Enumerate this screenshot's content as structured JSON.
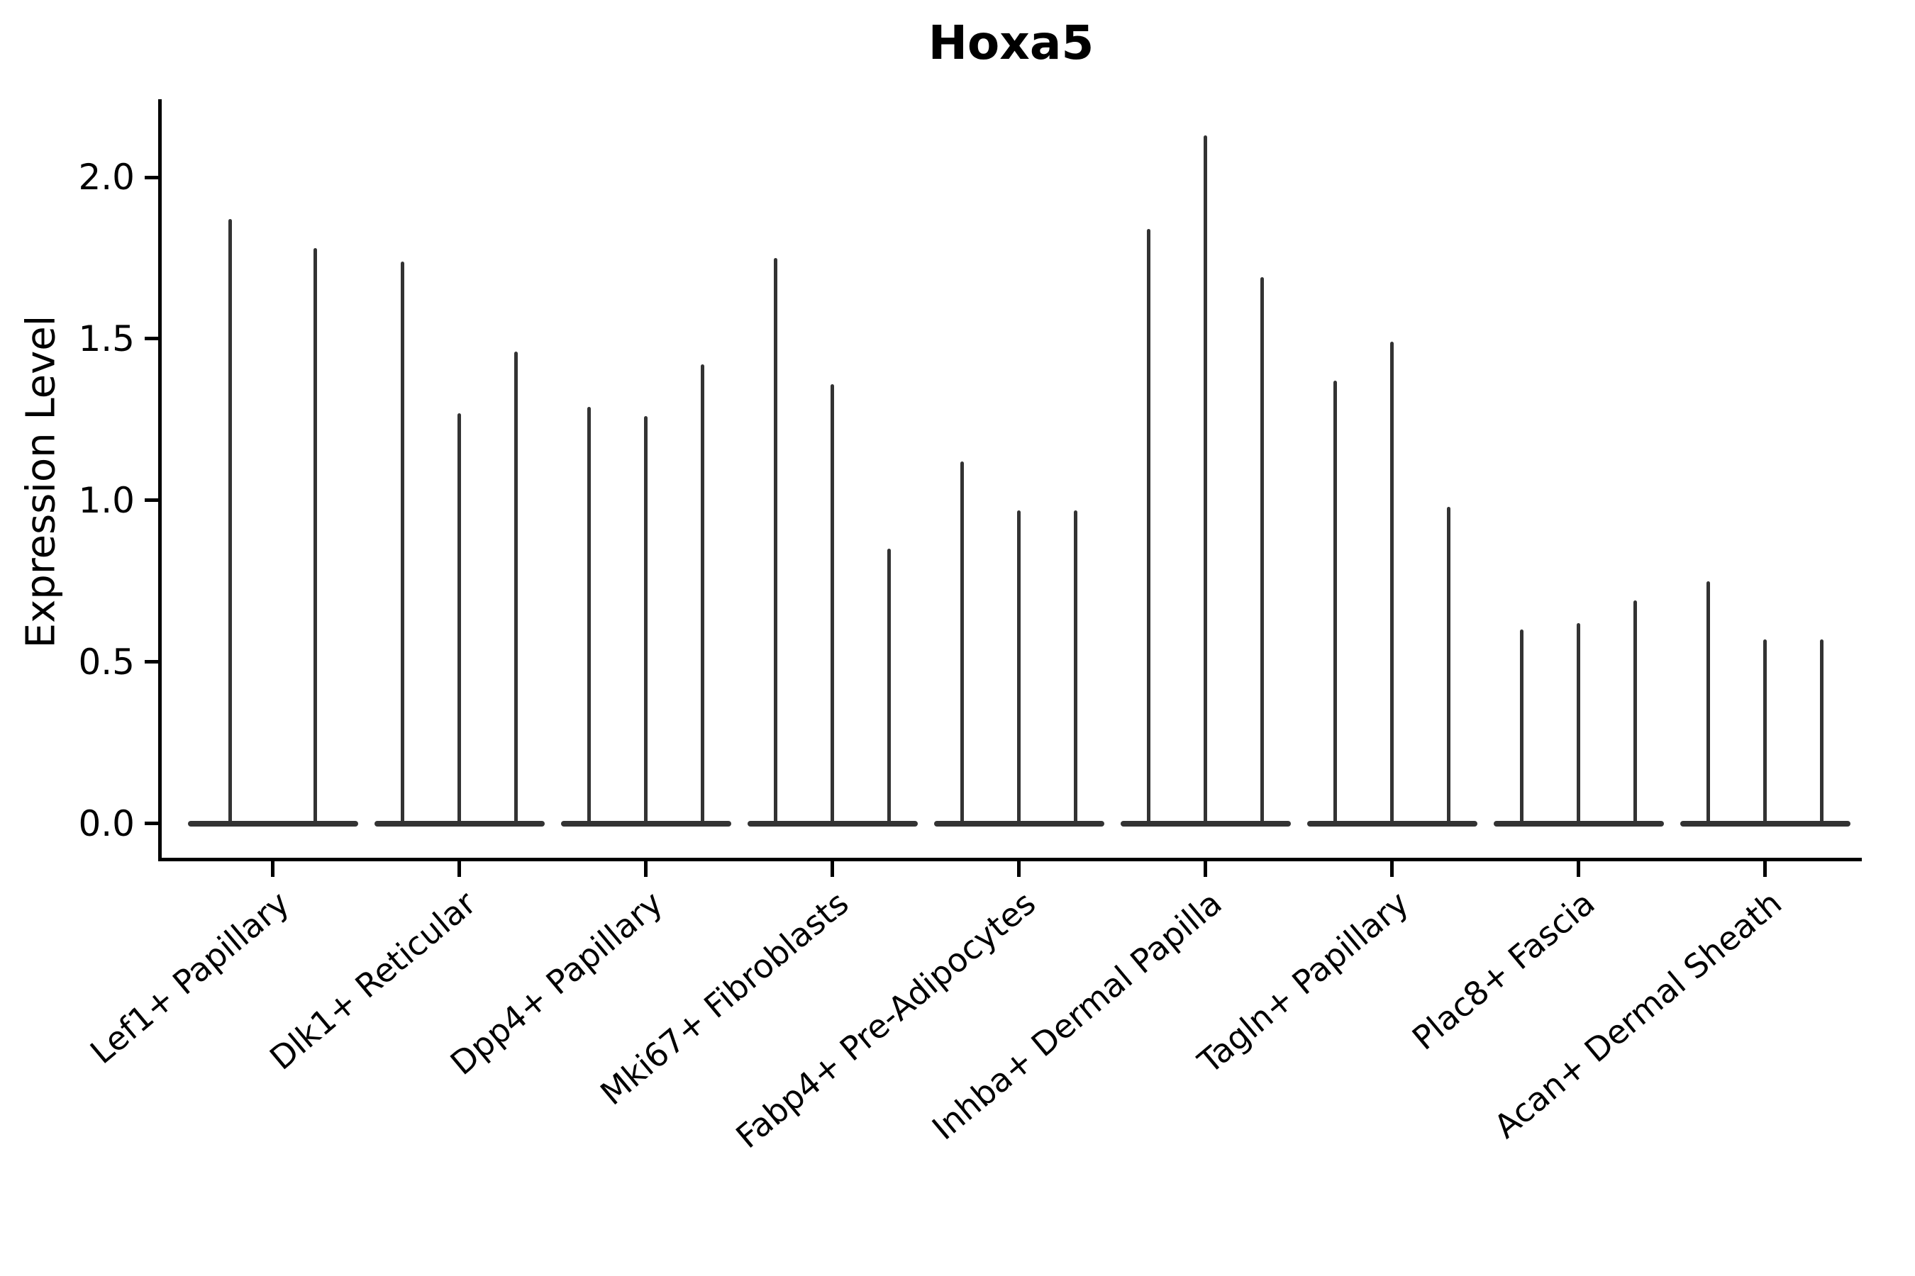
{
  "figure": {
    "title": "Hoxa5",
    "background_color": "#ffffff"
  },
  "chart_data": {
    "type": "violin",
    "title": "Hoxa5",
    "xlabel": "",
    "ylabel": "Expression Level",
    "ylim": [
      -0.11,
      2.24
    ],
    "yticks": [
      0.0,
      0.5,
      1.0,
      1.5,
      2.0
    ],
    "ytick_labels": [
      "0.0",
      "0.5",
      "1.0",
      "1.5",
      "2.0"
    ],
    "grid": false,
    "legend": "none",
    "xtick_rotation_deg": 40,
    "categories": [
      "Lef1+ Papillary",
      "Dlk1+ Reticular",
      "Dpp4+ Papillary",
      "Mki67+ Fibroblasts",
      "Fabp4+ Pre-Adipocytes",
      "Inhba+ Dermal Papilla",
      "Tagln+ Papillary",
      "Plac8+ Fascia",
      "Acan+ Dermal Sheath"
    ],
    "description": "Needle-thin violins: bulk of expression at 0 (wide flat base), thin spike up to the max expression value per violin. Each category holds 2-3 violins.",
    "violins": [
      {
        "category": "Lef1+ Papillary",
        "min": 0.0,
        "max_values": [
          1.87,
          1.78
        ]
      },
      {
        "category": "Dlk1+ Reticular",
        "min": 0.0,
        "max_values": [
          1.74,
          1.27,
          1.46
        ]
      },
      {
        "category": "Dpp4+ Papillary",
        "min": 0.0,
        "max_values": [
          1.29,
          1.26,
          1.42
        ]
      },
      {
        "category": "Mki67+ Fibroblasts",
        "min": 0.0,
        "max_values": [
          1.75,
          1.36,
          0.85
        ]
      },
      {
        "category": "Fabp4+ Pre-Adipocytes",
        "min": 0.0,
        "max_values": [
          1.12,
          0.97,
          0.97
        ]
      },
      {
        "category": "Inhba+ Dermal Papilla",
        "min": 0.0,
        "max_values": [
          1.84,
          2.13,
          1.69
        ]
      },
      {
        "category": "Tagln+ Papillary",
        "min": 0.0,
        "max_values": [
          1.37,
          1.49,
          0.98
        ]
      },
      {
        "category": "Plac8+ Fascia",
        "min": 0.0,
        "max_values": [
          0.6,
          0.62,
          0.69
        ]
      },
      {
        "category": "Acan+ Dermal Sheath",
        "min": 0.0,
        "max_values": [
          0.75,
          0.57,
          0.57
        ]
      }
    ],
    "colors": {
      "violin": "#333333",
      "axis": "#000000",
      "text": "#000000"
    }
  }
}
